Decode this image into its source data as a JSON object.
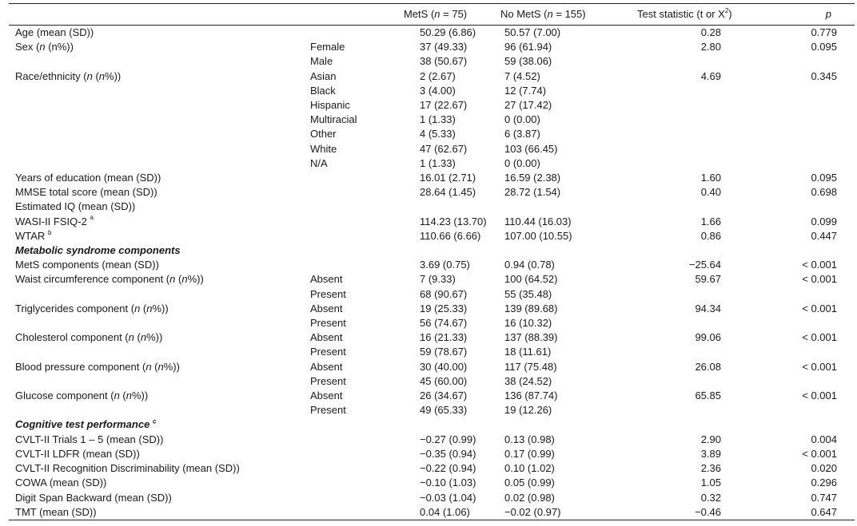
{
  "header": {
    "col3_a": "MetS (",
    "col3_b": "n",
    "col3_c": " = 75)",
    "col4_a": "No MetS (",
    "col4_b": "n",
    "col4_c": " = 155)",
    "col5": "Test statistic (t or X",
    "col5_sup": "2",
    "col5_end": ")",
    "col6": "p"
  },
  "rows": {
    "r0": {
      "label": "Age (mean (SD))",
      "metS": "50.29 (6.86)",
      "noMetS": "50.57 (7.00)",
      "stat": "0.28",
      "p": "0.779"
    },
    "r1": {
      "label_a": "Sex (",
      "label_b": "n",
      "label_c": " (n%))",
      "sub": "Female",
      "metS": "37 (49.33)",
      "noMetS": "96 (61.94)",
      "stat": "2.80",
      "p": "0.095"
    },
    "r2": {
      "sub": "Male",
      "metS": "38 (50.67)",
      "noMetS": "59 (38.06)"
    },
    "r3": {
      "label_a": "Race/ethnicity (",
      "label_b": "n",
      "label_c": " (",
      "label_d": "n",
      "label_e": "%))",
      "sub": "Asian",
      "metS": "2 (2.67)",
      "noMetS": "7 (4.52)",
      "stat": "4.69",
      "p": "0.345"
    },
    "r4": {
      "sub": "Black",
      "metS": "3 (4.00)",
      "noMetS": "12 (7.74)"
    },
    "r5": {
      "sub": "Hispanic",
      "metS": "17 (22.67)",
      "noMetS": "27 (17.42)"
    },
    "r6": {
      "sub": "Multiracial",
      "metS": "1 (1.33)",
      "noMetS": "0 (0.00)"
    },
    "r7": {
      "sub": "Other",
      "metS": "4 (5.33)",
      "noMetS": "6 (3.87)"
    },
    "r8": {
      "sub": "White",
      "metS": "47 (62.67)",
      "noMetS": "103 (66.45)"
    },
    "r9": {
      "sub": "N/A",
      "metS": "1 (1.33)",
      "noMetS": "0 (0.00)"
    },
    "r10": {
      "label": "Years of education (mean (SD))",
      "metS": "16.01 (2.71)",
      "noMetS": "16.59 (2.38)",
      "stat": "1.60",
      "p": "0.095"
    },
    "r11": {
      "label": "MMSE total score (mean (SD))",
      "metS": "28.64 (1.45)",
      "noMetS": "28.72 (1.54)",
      "stat": "0.40",
      "p": "0.698"
    },
    "r12": {
      "label": "Estimated IQ (mean (SD))"
    },
    "r13": {
      "label": "WASI-II FSIQ-2",
      "mark": "a",
      "metS": "114.23 (13.70)",
      "noMetS": "110.44 (16.03)",
      "stat": "1.66",
      "p": "0.099"
    },
    "r14": {
      "label": "WTAR",
      "mark": "b",
      "metS": "110.66 (6.66)",
      "noMetS": "107.00 (10.55)",
      "stat": "0.86",
      "p": "0.447"
    },
    "r15": {
      "section": "Metabolic syndrome components"
    },
    "r16": {
      "label": "MetS components (mean (SD))",
      "metS": "3.69 (0.75)",
      "noMetS": "0.94 (0.78)",
      "stat": "−25.64",
      "p": "< 0.001"
    },
    "r17": {
      "label_a": "Waist circumference component (",
      "label_b": "n",
      "label_c": " (",
      "label_d": "n",
      "label_e": "%))",
      "sub": "Absent",
      "metS": "7 (9.33)",
      "noMetS": "100 (64.52)",
      "stat": "59.67",
      "p": "< 0.001"
    },
    "r18": {
      "sub": "Present",
      "metS": "68 (90.67)",
      "noMetS": "55 (35.48)"
    },
    "r19": {
      "label_a": "Triglycerides component (",
      "label_b": "n",
      "label_c": " (",
      "label_d": "n",
      "label_e": "%))",
      "sub": "Absent",
      "metS": "19 (25.33)",
      "noMetS": "139 (89.68)",
      "stat": "94.34",
      "p": "< 0.001"
    },
    "r20": {
      "sub": "Present",
      "metS": "56 (74.67)",
      "noMetS": "16 (10.32)"
    },
    "r21": {
      "label_a": "Cholesterol component (",
      "label_b": "n",
      "label_c": " (",
      "label_d": "n",
      "label_e": "%))",
      "sub": "Absent",
      "metS": "16 (21.33)",
      "noMetS": "137 (88.39)",
      "stat": "99.06",
      "p": "< 0.001"
    },
    "r22": {
      "sub": "Present",
      "metS": "59 (78.67)",
      "noMetS": "18 (11.61)"
    },
    "r23": {
      "label_a": "Blood pressure component (",
      "label_b": "n",
      "label_c": " (",
      "label_d": "n",
      "label_e": "%))",
      "sub": "Absent",
      "metS": "30 (40.00)",
      "noMetS": "117 (75.48)",
      "stat": "26.08",
      "p": "< 0.001"
    },
    "r24": {
      "sub": "Present",
      "metS": "45 (60.00)",
      "noMetS": "38 (24.52)"
    },
    "r25": {
      "label_a": "Glucose component (",
      "label_b": "n",
      "label_c": " (",
      "label_d": "n",
      "label_e": "%))",
      "sub": "Absent",
      "metS": "26 (34.67)",
      "noMetS": "136 (87.74)",
      "stat": "65.85",
      "p": "< 0.001"
    },
    "r26": {
      "sub": "Present",
      "metS": "49 (65.33)",
      "noMetS": "19 (12.26)"
    },
    "r27": {
      "section": "Cognitive test performance",
      "mark": "c"
    },
    "r28": {
      "label": "CVLT-II Trials 1 – 5 (mean (SD))",
      "metS": "−0.27 (0.99)",
      "noMetS": "0.13 (0.98)",
      "stat": "2.90",
      "p": "0.004"
    },
    "r29": {
      "label": "CVLT-II LDFR (mean (SD))",
      "metS": "−0.35 (0.94)",
      "noMetS": "0.17 (0.99)",
      "stat": "3.89",
      "p": "< 0.001"
    },
    "r30": {
      "label": "CVLT-II Recognition Discriminability (mean (SD))",
      "metS": "−0.22 (0.94)",
      "noMetS": "0.10 (1.02)",
      "stat": "2.36",
      "p": "0.020"
    },
    "r31": {
      "label": "COWA (mean (SD))",
      "metS": "−0.10 (1.03)",
      "noMetS": "0.05 (0.99)",
      "stat": "1.05",
      "p": "0.296"
    },
    "r32": {
      "label": "Digit Span Backward (mean (SD))",
      "metS": "−0.03 (1.04)",
      "noMetS": "0.02 (0.98)",
      "stat": "0.32",
      "p": "0.747"
    },
    "r33": {
      "label": "TMT (mean (SD))",
      "metS": "0.04 (1.06)",
      "noMetS": "−0.02 (0.97)",
      "stat": "−0.46",
      "p": "0.647"
    }
  }
}
